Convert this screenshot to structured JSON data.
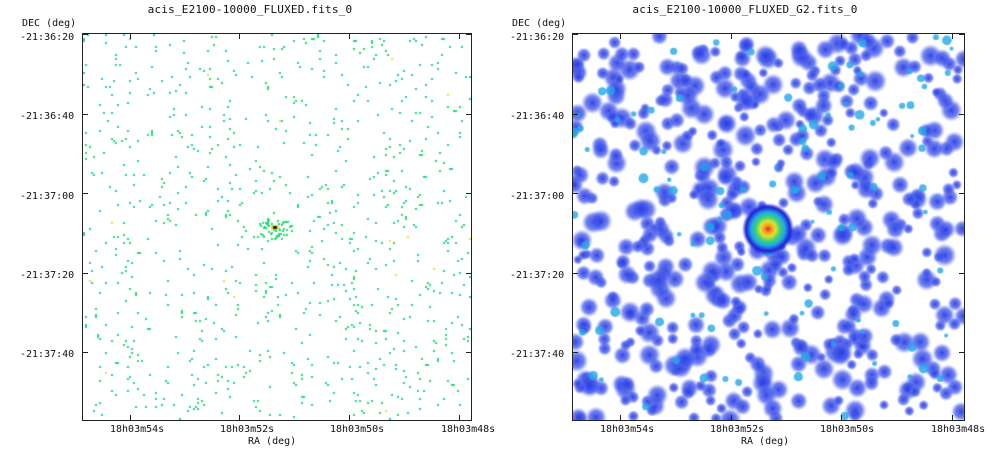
{
  "panels": [
    {
      "title": "acis_E2100-10000_FLUXED.fits_0",
      "y_axis_label": "DEC (deg)",
      "x_axis_label": "RA (deg)",
      "y_ticks": [
        "-21:36:20",
        "-21:36:40",
        "-21:37:00",
        "-21:37:20",
        "-21:37:40"
      ],
      "x_ticks": [
        "18h03m54s",
        "18h03m52s",
        "18h03m50s",
        "18h03m48s"
      ],
      "style": "sparse-pixels",
      "colors": {
        "background": "#ffffff",
        "pixel": "#22dd77",
        "hot": "#f0e030",
        "core": "#222222"
      }
    },
    {
      "title": "acis_E2100-10000_FLUXED_G2.fits_0",
      "y_axis_label": "DEC (deg)",
      "x_axis_label": "RA (deg)",
      "y_ticks": [
        "-21:36:20",
        "-21:36:40",
        "-21:37:00",
        "-21:37:20",
        "-21:37:40"
      ],
      "x_ticks": [
        "18h03m54s",
        "18h03m52s",
        "18h03m50s",
        "18h03m48s"
      ],
      "style": "smoothed",
      "colors": {
        "background": "#ffffff",
        "low": "#1f1fd8",
        "mid": "#22a8e8",
        "high": "#e82818"
      }
    }
  ]
}
